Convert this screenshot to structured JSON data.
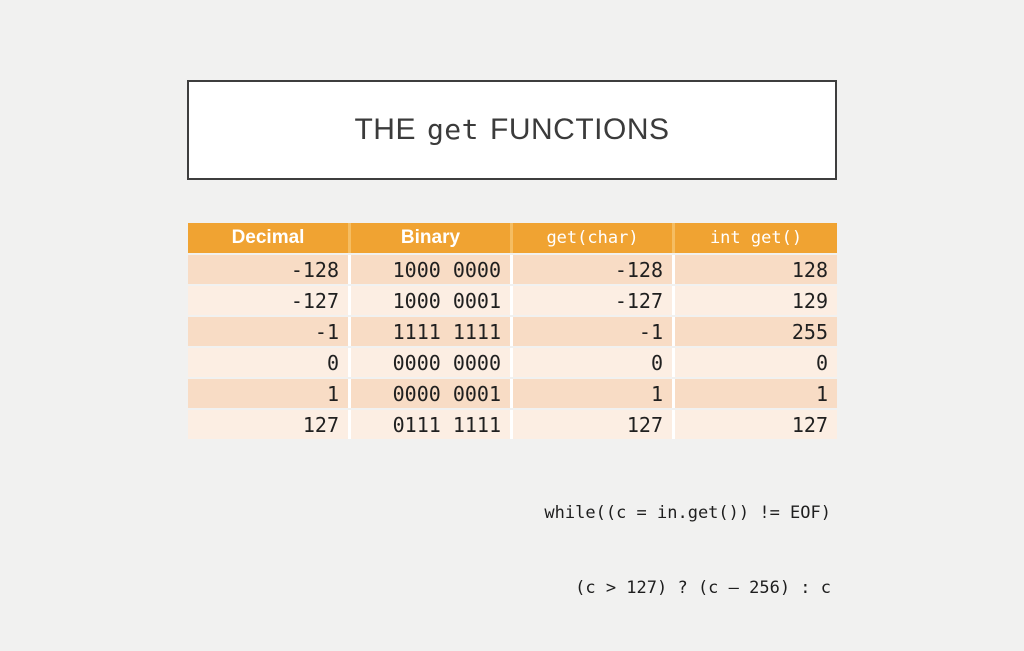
{
  "title": {
    "pre": "THE",
    "code": "get",
    "post": "FUNCTIONS"
  },
  "table": {
    "headers": [
      "Decimal",
      "Binary",
      "get(char)",
      "int get()"
    ],
    "rows": [
      {
        "decimal": "-128",
        "binary": "1000 0000",
        "get_char": "-128",
        "int_get": "128"
      },
      {
        "decimal": "-127",
        "binary": "1000 0001",
        "get_char": "-127",
        "int_get": "129"
      },
      {
        "decimal": "-1",
        "binary": "1111 1111",
        "get_char": "-1",
        "int_get": "255"
      },
      {
        "decimal": "0",
        "binary": "0000 0000",
        "get_char": "0",
        "int_get": "0"
      },
      {
        "decimal": "1",
        "binary": "0000 0001",
        "get_char": "1",
        "int_get": "1"
      },
      {
        "decimal": "127",
        "binary": "0111 1111",
        "get_char": "127",
        "int_get": "127"
      }
    ]
  },
  "code": {
    "line1": "while((c = in.get()) != EOF)",
    "line2": "(c > 127) ? (c – 256) : c"
  },
  "colors": {
    "slide_bg": "#F1F1F0",
    "title_border": "#3E3E3E",
    "title_text": "#3B3B3B",
    "header_bg": "#F0A332",
    "header_gap": "#F5BD62",
    "row_dark": "#F8DCC5",
    "row_light": "#FCEEE3",
    "header_text": "#FFFFFF",
    "cell_text": "#202020"
  }
}
